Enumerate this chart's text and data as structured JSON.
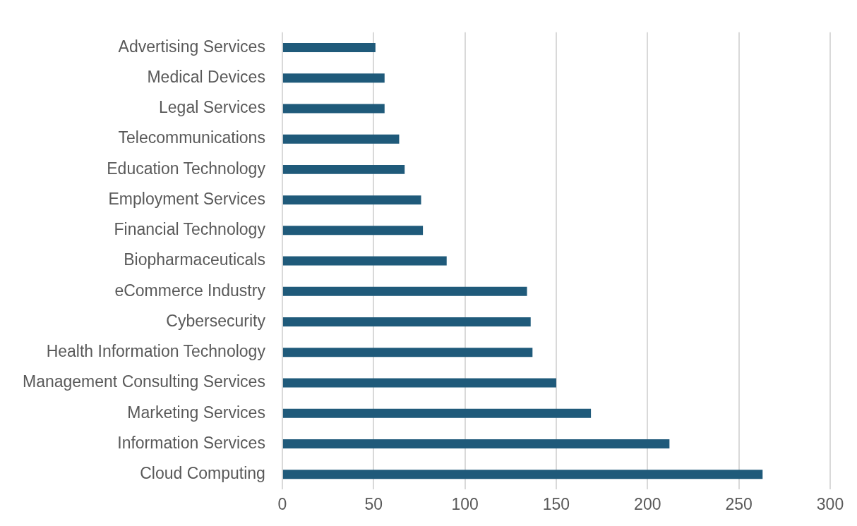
{
  "chart_data": {
    "type": "bar",
    "orientation": "horizontal",
    "categories": [
      "Advertising Services",
      "Medical Devices",
      "Legal Services",
      "Telecommunications",
      "Education Technology",
      "Employment Services",
      "Financial Technology",
      "Biopharmaceuticals",
      "eCommerce Industry",
      "Cybersecurity",
      "Health Information Technology",
      "Management Consulting Services",
      "Marketing Services",
      "Information Services",
      "Cloud Computing"
    ],
    "values": [
      51,
      56,
      56,
      64,
      67,
      76,
      77,
      90,
      134,
      136,
      137,
      150,
      169,
      212,
      263
    ],
    "color": "#1f5a7a",
    "xlim": [
      0,
      300
    ],
    "xticks": [
      0,
      50,
      100,
      150,
      200,
      250,
      300
    ],
    "grid": "x"
  }
}
